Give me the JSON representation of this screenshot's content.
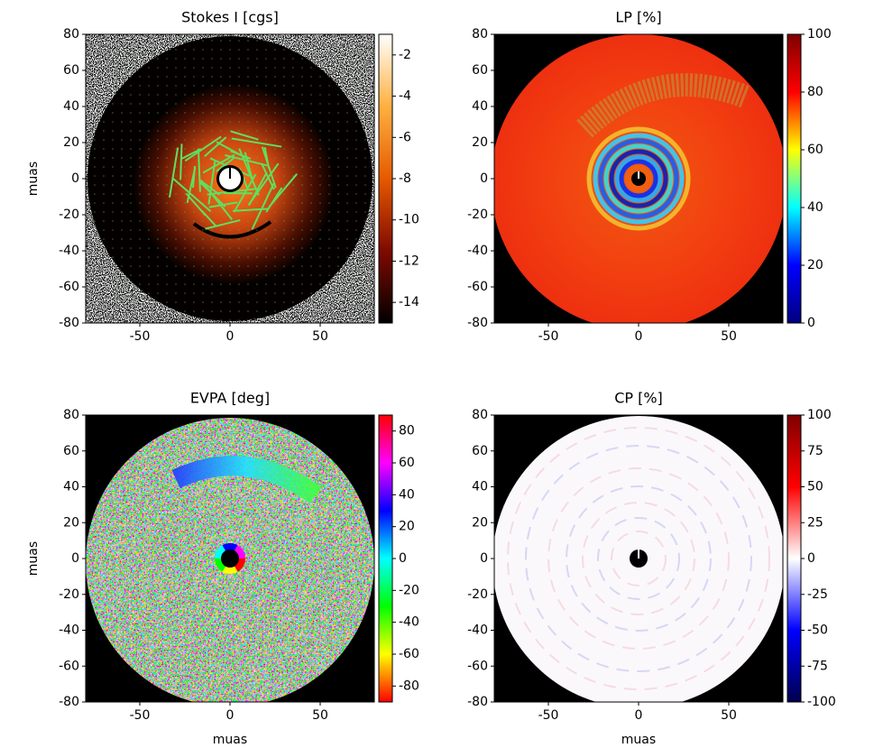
{
  "chart_data": [
    {
      "type": "image",
      "title": "Stokes I [cgs]",
      "ylabel": "muas",
      "xlim": [
        -80,
        80
      ],
      "ylim": [
        -80,
        80
      ],
      "xticks": [
        -50,
        0,
        50
      ],
      "yticks": [
        -80,
        -60,
        -40,
        -20,
        0,
        20,
        40,
        60,
        80
      ],
      "colorbar": {
        "lim": [
          -15,
          -1
        ],
        "ticks": [
          -2,
          -4,
          -6,
          -8,
          -10,
          -12,
          -14
        ],
        "colors": [
          "#000000",
          "#7f0a00",
          "#e55a00",
          "#ffb040",
          "#ffffff"
        ]
      }
    },
    {
      "type": "image",
      "title": "LP [%]",
      "xlim": [
        -80,
        80
      ],
      "ylim": [
        -80,
        80
      ],
      "xticks": [
        -50,
        0,
        50
      ],
      "yticks": [
        -80,
        -60,
        -40,
        -20,
        0,
        20,
        40,
        60,
        80
      ],
      "colorbar": {
        "lim": [
          0,
          100
        ],
        "ticks": [
          0,
          20,
          40,
          60,
          80,
          100
        ],
        "colors": [
          "#00007f",
          "#0000ff",
          "#00ffff",
          "#ffff00",
          "#ff0000",
          "#7f0000"
        ]
      }
    },
    {
      "type": "image",
      "title": "EVPA [deg]",
      "xlabel": "muas",
      "ylabel": "muas",
      "xlim": [
        -80,
        80
      ],
      "ylim": [
        -80,
        80
      ],
      "xticks": [
        -50,
        0,
        50
      ],
      "yticks": [
        -80,
        -60,
        -40,
        -20,
        0,
        20,
        40,
        60,
        80
      ],
      "colorbar": {
        "lim": [
          -90,
          90
        ],
        "ticks": [
          -80,
          -60,
          -40,
          -20,
          0,
          20,
          40,
          60,
          80
        ],
        "colors": [
          "#ff0000",
          "#ffff00",
          "#00ff00",
          "#00ffff",
          "#0000ff",
          "#ff00ff",
          "#ff0000"
        ]
      }
    },
    {
      "type": "image",
      "title": "CP [%]",
      "xlabel": "muas",
      "xlim": [
        -80,
        80
      ],
      "ylim": [
        -80,
        80
      ],
      "xticks": [
        -50,
        0,
        50
      ],
      "yticks": [
        -80,
        -60,
        -40,
        -20,
        0,
        20,
        40,
        60,
        80
      ],
      "colorbar": {
        "lim": [
          -100,
          100
        ],
        "ticks": [
          -100,
          -75,
          -50,
          -25,
          0,
          25,
          50,
          75,
          100
        ],
        "colors": [
          "#00004c",
          "#0000ff",
          "#ffffff",
          "#ff0000",
          "#7f0000"
        ]
      }
    }
  ]
}
